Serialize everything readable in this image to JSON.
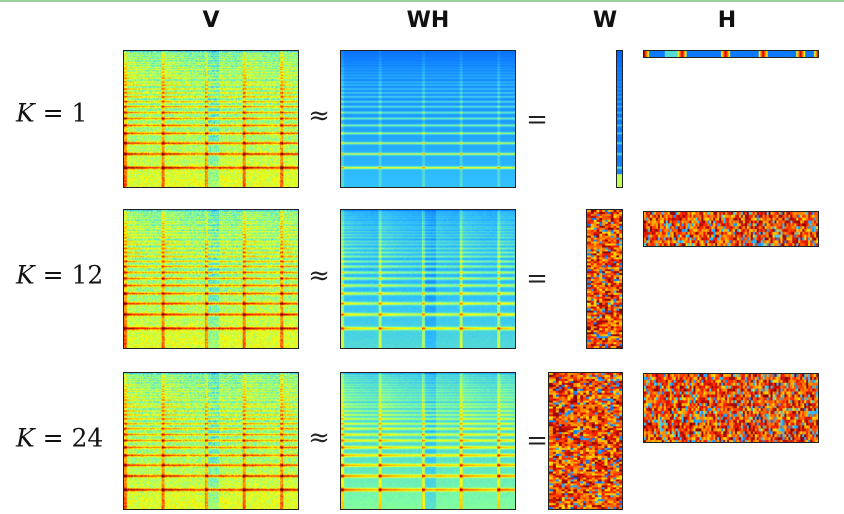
{
  "columns": {
    "v": "V",
    "wh": "WH",
    "w": "W",
    "h": "H"
  },
  "rows": [
    {
      "k_var": "K",
      "k_rest": " = 1",
      "approx": "≈",
      "equals": "=",
      "rank": 1
    },
    {
      "k_var": "K",
      "k_rest": " = 12",
      "approx": "≈",
      "equals": "=",
      "rank": 12
    },
    {
      "k_var": "K",
      "k_rest": " = 24",
      "approx": "≈",
      "equals": "=",
      "rank": 24
    }
  ],
  "colormap": [
    "#00008f",
    "#0060ff",
    "#30c0ff",
    "#80ffa0",
    "#ffff00",
    "#ff9000",
    "#ff2000",
    "#800000"
  ]
}
